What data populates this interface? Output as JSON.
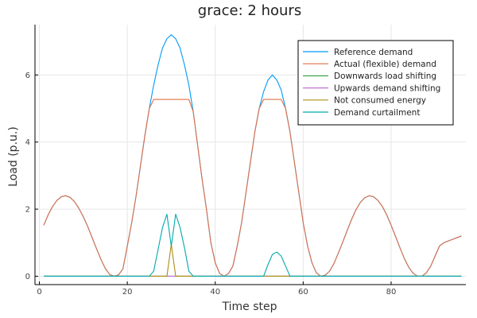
{
  "chart_data": {
    "type": "line",
    "title": "grace: 2 hours",
    "xlabel": "Time step",
    "ylabel": "Load (p.u.)",
    "xlim": [
      -1,
      97
    ],
    "ylim": [
      -0.25,
      7.5
    ],
    "x_ticks": [
      0,
      20,
      40,
      60,
      80
    ],
    "y_ticks": [
      0,
      2,
      4,
      6
    ],
    "grid": true,
    "legend_position": "top-right",
    "series": [
      {
        "name": "Reference demand",
        "color": "#009AFA",
        "x": [
          1,
          2,
          3,
          4,
          5,
          6,
          7,
          8,
          9,
          10,
          11,
          12,
          13,
          14,
          15,
          16,
          17,
          18,
          19,
          20,
          21,
          22,
          23,
          24,
          25,
          26,
          27,
          28,
          29,
          30,
          31,
          32,
          33,
          34,
          35,
          36,
          37,
          38,
          39,
          40,
          41,
          42,
          43,
          44,
          45,
          46,
          47,
          48,
          49,
          50,
          51,
          52,
          53,
          54,
          55,
          56,
          57,
          58,
          59,
          60,
          61,
          62,
          63,
          64,
          65,
          66,
          67,
          68,
          69,
          70,
          71,
          72,
          73,
          74,
          75,
          76,
          77,
          78,
          79,
          80,
          81,
          82,
          83,
          84,
          85,
          86,
          87,
          88,
          89,
          90,
          91,
          92,
          93,
          94,
          95,
          96
        ],
        "values": [
          1.52,
          1.83,
          2.08,
          2.26,
          2.37,
          2.4,
          2.35,
          2.22,
          2.02,
          1.77,
          1.48,
          1.15,
          0.82,
          0.5,
          0.23,
          0.05,
          0.0,
          0.04,
          0.22,
          0.9,
          1.6,
          2.4,
          3.3,
          4.2,
          5.0,
          5.7,
          6.3,
          6.8,
          7.08,
          7.2,
          7.08,
          6.8,
          6.3,
          5.7,
          4.9,
          3.9,
          2.9,
          2.0,
          1.0,
          0.4,
          0.08,
          0.0,
          0.08,
          0.3,
          0.9,
          1.6,
          2.5,
          3.4,
          4.3,
          5.0,
          5.5,
          5.85,
          6.0,
          5.85,
          5.55,
          5.0,
          4.3,
          3.4,
          2.5,
          1.6,
          0.9,
          0.4,
          0.1,
          0.0,
          0.03,
          0.15,
          0.38,
          0.69,
          1.02,
          1.36,
          1.69,
          1.98,
          2.2,
          2.34,
          2.4,
          2.37,
          2.26,
          2.08,
          1.83,
          1.52,
          1.19,
          0.85,
          0.53,
          0.27,
          0.09,
          0.0,
          0.0,
          0.1,
          0.3,
          0.6,
          0.9,
          1.0,
          1.05,
          1.1,
          1.15,
          1.2
        ]
      },
      {
        "name": "Actual (flexible) demand",
        "color": "#E26F46",
        "x": [
          1,
          2,
          3,
          4,
          5,
          6,
          7,
          8,
          9,
          10,
          11,
          12,
          13,
          14,
          15,
          16,
          17,
          18,
          19,
          20,
          21,
          22,
          23,
          24,
          25,
          26,
          27,
          28,
          29,
          30,
          31,
          32,
          33,
          34,
          35,
          36,
          37,
          38,
          39,
          40,
          41,
          42,
          43,
          44,
          45,
          46,
          47,
          48,
          49,
          50,
          51,
          52,
          53,
          54,
          55,
          56,
          57,
          58,
          59,
          60,
          61,
          62,
          63,
          64,
          65,
          66,
          67,
          68,
          69,
          70,
          71,
          72,
          73,
          74,
          75,
          76,
          77,
          78,
          79,
          80,
          81,
          82,
          83,
          84,
          85,
          86,
          87,
          88,
          89,
          90,
          91,
          92,
          93,
          94,
          95,
          96
        ],
        "values": [
          1.52,
          1.83,
          2.08,
          2.26,
          2.37,
          2.4,
          2.35,
          2.22,
          2.02,
          1.77,
          1.48,
          1.15,
          0.82,
          0.5,
          0.23,
          0.05,
          0.0,
          0.04,
          0.22,
          0.9,
          1.6,
          2.4,
          3.3,
          4.2,
          5.0,
          5.27,
          5.27,
          5.27,
          5.27,
          5.27,
          5.27,
          5.27,
          5.27,
          5.27,
          4.9,
          3.9,
          2.9,
          2.0,
          1.0,
          0.4,
          0.08,
          0.0,
          0.08,
          0.3,
          0.9,
          1.6,
          2.5,
          3.4,
          4.3,
          5.0,
          5.27,
          5.27,
          5.27,
          5.27,
          5.27,
          5.0,
          4.3,
          3.4,
          2.5,
          1.6,
          0.9,
          0.4,
          0.1,
          0.0,
          0.03,
          0.15,
          0.38,
          0.69,
          1.02,
          1.36,
          1.69,
          1.98,
          2.2,
          2.34,
          2.4,
          2.37,
          2.26,
          2.08,
          1.83,
          1.52,
          1.19,
          0.85,
          0.53,
          0.27,
          0.09,
          0.0,
          0.0,
          0.1,
          0.3,
          0.6,
          0.9,
          1.0,
          1.05,
          1.1,
          1.15,
          1.2
        ]
      },
      {
        "name": "Downwards load shifting",
        "color": "#3EA44E",
        "x": [
          1,
          96
        ],
        "values": [
          0,
          0
        ]
      },
      {
        "name": "Upwards demand shifting",
        "color": "#C271D2",
        "x": [
          1,
          96
        ],
        "values": [
          0,
          0
        ]
      },
      {
        "name": "Not consumed energy",
        "color": "#AC8D18",
        "x": [
          1,
          29,
          30,
          31,
          96
        ],
        "values": [
          0,
          0,
          0.95,
          0,
          0
        ]
      },
      {
        "name": "Demand curtailment",
        "color": "#00A9AD",
        "x": [
          1,
          25,
          26,
          27,
          28,
          29,
          30,
          31,
          32,
          33,
          34,
          35,
          51,
          52,
          53,
          54,
          55,
          56,
          57,
          96
        ],
        "values": [
          0,
          0,
          0.15,
          0.8,
          1.45,
          1.85,
          0.9,
          1.85,
          1.45,
          0.85,
          0.15,
          0,
          0,
          0.35,
          0.65,
          0.72,
          0.6,
          0.3,
          0,
          0
        ]
      }
    ]
  }
}
